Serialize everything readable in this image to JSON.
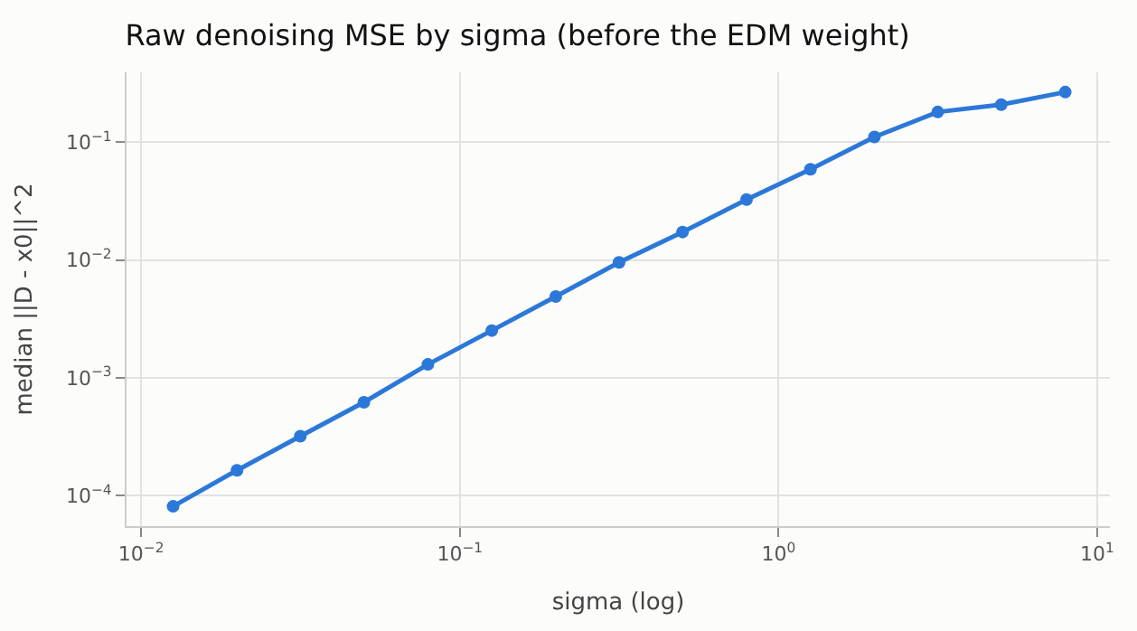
{
  "chart_data": {
    "type": "line",
    "title": "Raw denoising MSE by sigma (before the EDM weight)",
    "xlabel": "sigma (log)",
    "ylabel": "median ||D - x0||^2",
    "x": [
      0.0126,
      0.02,
      0.0316,
      0.05,
      0.0794,
      0.126,
      0.2,
      0.316,
      0.5,
      0.794,
      1.26,
      2,
      3.16,
      5,
      7.94
    ],
    "series": [
      {
        "color": "#2b78d8",
        "values": [
          8.1e-05,
          0.000164,
          0.000319,
          0.00062,
          0.0013,
          0.00252,
          0.0049,
          0.00955,
          0.0173,
          0.0326,
          0.0591,
          0.111,
          0.181,
          0.209,
          0.267
        ]
      }
    ],
    "log": "xy",
    "xlim": [
      0.009,
      10.96
    ],
    "ylim": [
      5.5e-05,
      0.393
    ],
    "xticks": [
      {
        "value": 0.01,
        "label": "10$^{−2}$"
      },
      {
        "value": 0.1,
        "label": "10$^{−1}$"
      },
      {
        "value": 1,
        "label": "10$^{0}$"
      },
      {
        "value": 10,
        "label": "10$^{1}$"
      }
    ],
    "yticks": [
      {
        "value": 0.0001,
        "label": "10$^{−4}$"
      },
      {
        "value": 0.001,
        "label": "10$^{−3}$"
      },
      {
        "value": 0.01,
        "label": "10$^{−2}$"
      },
      {
        "value": 0.1,
        "label": "10$^{−1}$"
      }
    ],
    "grid": true,
    "marker": "circle",
    "line_style": "solid"
  }
}
